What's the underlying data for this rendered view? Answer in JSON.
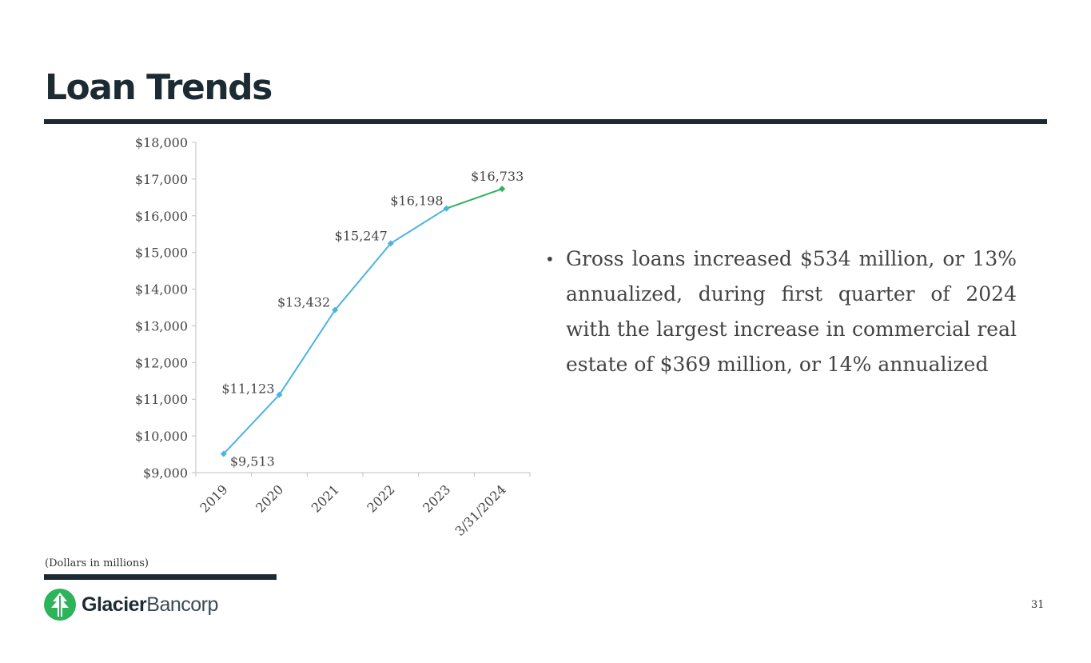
{
  "slide": {
    "title": "Loan Trends",
    "bullet": "Gross loans increased $534 million, or 13% annualized, during first quarter of 2024 with the largest increase in commercial real estate of $369 million, or 14% annualized",
    "footnote": "(Dollars in millions)",
    "page_number": "31",
    "brand": {
      "bold": "Glacier",
      "light": "Bancorp"
    }
  },
  "colors": {
    "title": "#1c2b33",
    "line_annual": "#4ab4e0",
    "line_latest": "#2db35a",
    "logo_green": "#2db35a"
  },
  "chart_data": {
    "type": "line",
    "categories": [
      "2019",
      "2020",
      "2021",
      "2022",
      "2023",
      "3/31/2024"
    ],
    "values": [
      9513,
      11123,
      13432,
      15247,
      16198,
      16733
    ],
    "data_labels": [
      "$9,513",
      "$11,123",
      "$13,432",
      "$15,247",
      "$16,198",
      "$16,733"
    ],
    "ylim": [
      9000,
      18000
    ],
    "ytick_labels": [
      "$9,000",
      "$10,000",
      "$11,000",
      "$12,000",
      "$13,000",
      "$14,000",
      "$15,000",
      "$16,000",
      "$17,000",
      "$18,000"
    ],
    "grid": false,
    "legend": "none",
    "segment_colors": [
      "#4ab4e0",
      "#4ab4e0",
      "#4ab4e0",
      "#4ab4e0",
      "#2db35a"
    ]
  }
}
